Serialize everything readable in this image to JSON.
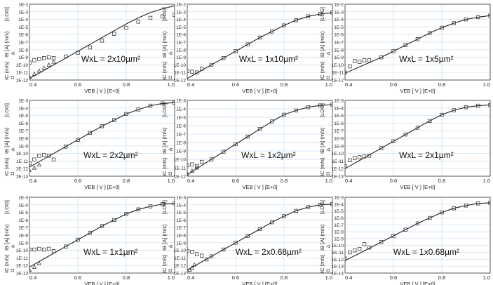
{
  "axis_labels": {
    "x": "VEB [ V ]  [E+0]",
    "y_ic": "IC (m/s)",
    "y_ib": "IB [A] (m/s)",
    "y_log": "[LOG]"
  },
  "chart_data": [
    {
      "type": "scatter",
      "annotation": "WxL = 2x10µm²",
      "xlim": [
        0.4,
        1.0
      ],
      "xticks": [
        "0.4",
        "0.6",
        "0.8",
        "1.0"
      ],
      "ylog_range": [
        -12,
        -2
      ],
      "yticks": [
        "1E-12",
        "1E-11",
        "1E-10",
        "1E-9",
        "1E-8",
        "1E-7",
        "1E-6",
        "1E-5",
        "1E-4",
        "1E-3",
        "1E-2"
      ],
      "series": [
        {
          "marker": "line",
          "x": [
            0.4,
            0.45,
            0.5,
            0.55,
            0.6,
            0.65,
            0.7,
            0.75,
            0.8,
            0.85,
            0.9,
            0.95,
            1.0
          ],
          "y": [
            -11.8,
            -10.9,
            -10.0,
            -9.1,
            -8.2,
            -7.3,
            -6.4,
            -5.5,
            -4.6,
            -3.8,
            -3.1,
            -2.6,
            -2.2
          ]
        },
        {
          "marker": "square",
          "x": [
            0.4,
            0.42,
            0.44,
            0.46,
            0.48,
            0.5,
            0.55,
            0.6,
            0.65,
            0.7,
            0.75,
            0.8,
            0.85,
            0.9,
            0.95,
            1.0
          ],
          "y": [
            -9.7,
            -9.4,
            -9.2,
            -9.1,
            -9.0,
            -9.1,
            -8.9,
            -8.4,
            -7.7,
            -6.8,
            -5.9,
            -5.1,
            -4.3,
            -3.8,
            -3.6,
            -3.4
          ]
        },
        {
          "marker": "triangle",
          "x": [
            0.4,
            0.42,
            0.44,
            0.46,
            0.48,
            0.5
          ],
          "y": [
            -11.6,
            -11.2,
            -10.8,
            -10.4,
            -10.0,
            -9.6
          ]
        }
      ]
    },
    {
      "type": "scatter",
      "annotation": "WxL = 1x10µm²",
      "xlim": [
        0.4,
        1.0
      ],
      "xticks": [
        "0.4",
        "0.6",
        "0.8",
        "1.0"
      ],
      "ylog_range": [
        -12,
        -2
      ],
      "yticks": [
        "1E-12",
        "1E-11",
        "1E-10",
        "1E-9",
        "1E-8",
        "1E-7",
        "1E-6",
        "1E-5",
        "1E-4",
        "1E-3",
        "1E-2"
      ],
      "series": [
        {
          "marker": "line",
          "x": [
            0.4,
            0.45,
            0.5,
            0.55,
            0.6,
            0.65,
            0.7,
            0.75,
            0.8,
            0.85,
            0.9,
            0.95,
            1.0
          ],
          "y": [
            -11.8,
            -10.9,
            -10.0,
            -9.1,
            -8.2,
            -7.3,
            -6.4,
            -5.6,
            -4.8,
            -4.1,
            -3.6,
            -3.3,
            -3.1
          ]
        },
        {
          "marker": "square",
          "x": [
            0.4,
            0.42,
            0.44,
            0.46,
            0.5,
            0.55,
            0.6,
            0.65,
            0.7,
            0.75,
            0.8,
            0.85,
            0.9,
            0.95,
            1.0
          ],
          "y": [
            -10.8,
            -10.9,
            -11.0,
            -10.5,
            -10.0,
            -9.1,
            -8.2,
            -7.3,
            -6.4,
            -5.6,
            -4.8,
            -4.1,
            -3.6,
            -3.3,
            -3.1
          ]
        }
      ]
    },
    {
      "type": "scatter",
      "annotation": "WxL = 1x5µm²",
      "xlim": [
        0.4,
        1.0
      ],
      "xticks": [
        "0.4",
        "0.6",
        "0.8",
        "1.0"
      ],
      "ylog_range": [
        -12,
        -2
      ],
      "yticks": [
        "1E-12",
        "1E-11",
        "1E-10",
        "1E-9",
        "1E-8",
        "1E-7",
        "1E-6",
        "1E-5",
        "1E-4",
        "1E-3",
        "1E-2"
      ],
      "series": [
        {
          "marker": "line",
          "x": [
            0.4,
            0.45,
            0.5,
            0.55,
            0.6,
            0.65,
            0.7,
            0.75,
            0.8,
            0.85,
            0.9,
            0.95,
            1.0
          ],
          "y": [
            -11.1,
            -10.4,
            -9.7,
            -9.0,
            -8.2,
            -7.4,
            -6.6,
            -5.8,
            -5.1,
            -4.5,
            -4.0,
            -3.7,
            -3.5
          ]
        },
        {
          "marker": "square",
          "x": [
            0.4,
            0.42,
            0.44,
            0.46,
            0.48,
            0.5,
            0.55,
            0.6,
            0.65,
            0.7,
            0.75,
            0.8,
            0.85,
            0.9,
            0.95,
            1.0
          ],
          "y": [
            -11.0,
            -10.2,
            -9.5,
            -9.6,
            -9.4,
            -9.4,
            -9.0,
            -8.2,
            -7.4,
            -6.6,
            -5.8,
            -5.1,
            -4.5,
            -4.0,
            -3.7,
            -3.5
          ]
        }
      ]
    },
    {
      "type": "scatter",
      "annotation": "WxL = 2x2µm²",
      "xlim": [
        0.4,
        1.0
      ],
      "xticks": [
        "0.4",
        "0.6",
        "0.8",
        "1.0"
      ],
      "ylog_range": [
        -13,
        -3
      ],
      "yticks": [
        "1E-13",
        "1E-12",
        "1E-11",
        "1E-10",
        "1E-9",
        "1E-8",
        "1E-7",
        "1E-6",
        "1E-5",
        "1E-4",
        "1E-3"
      ],
      "series": [
        {
          "marker": "line",
          "x": [
            0.4,
            0.45,
            0.5,
            0.55,
            0.6,
            0.65,
            0.7,
            0.75,
            0.8,
            0.85,
            0.9,
            0.95,
            1.0
          ],
          "y": [
            -11.8,
            -10.9,
            -10.0,
            -9.1,
            -8.2,
            -7.3,
            -6.4,
            -5.6,
            -4.8,
            -4.2,
            -3.7,
            -3.4,
            -3.3
          ]
        },
        {
          "marker": "square",
          "x": [
            0.4,
            0.42,
            0.44,
            0.46,
            0.48,
            0.5,
            0.55,
            0.6,
            0.65,
            0.7,
            0.75,
            0.8,
            0.85,
            0.9,
            0.95,
            1.0
          ],
          "y": [
            -11.3,
            -10.8,
            -10.3,
            -10.2,
            -10.3,
            -10.8,
            -9.1,
            -8.2,
            -7.3,
            -6.4,
            -5.6,
            -4.8,
            -4.2,
            -3.7,
            -3.4,
            -3.3
          ]
        },
        {
          "marker": "triangle",
          "x": [
            0.4,
            0.42,
            0.44
          ],
          "y": [
            -12.2,
            -11.9,
            -11.5
          ]
        }
      ]
    },
    {
      "type": "scatter",
      "annotation": "WxL = 1x2µm²",
      "xlim": [
        0.4,
        1.0
      ],
      "xticks": [
        "0.4",
        "0.6",
        "0.8",
        "1.0"
      ],
      "ylog_range": [
        -12,
        -3
      ],
      "yticks": [
        "1E-12",
        "1E-11",
        "1E-10",
        "1E-9",
        "1E-8",
        "1E-7",
        "1E-6",
        "1E-5",
        "1E-4",
        "1E-3"
      ],
      "series": [
        {
          "marker": "line",
          "x": [
            0.4,
            0.45,
            0.5,
            0.55,
            0.6,
            0.65,
            0.7,
            0.75,
            0.8,
            0.85,
            0.9,
            0.95,
            1.0
          ],
          "y": [
            -11.8,
            -10.9,
            -10.0,
            -9.1,
            -8.2,
            -7.3,
            -6.4,
            -5.5,
            -4.7,
            -4.2,
            -3.8,
            -3.6,
            -3.5
          ]
        },
        {
          "marker": "square",
          "x": [
            0.4,
            0.42,
            0.44,
            0.46,
            0.5,
            0.55,
            0.6,
            0.65,
            0.7,
            0.75,
            0.8,
            0.85,
            0.9,
            0.95,
            1.0
          ],
          "y": [
            -10.7,
            -10.6,
            -10.8,
            -10.3,
            -10.0,
            -9.1,
            -8.2,
            -7.3,
            -6.4,
            -5.5,
            -4.7,
            -4.2,
            -3.8,
            -3.6,
            -3.5
          ]
        },
        {
          "marker": "triangle",
          "x": [
            0.4,
            0.42,
            0.44
          ],
          "y": [
            -11.7,
            -11.4,
            -11.0
          ]
        }
      ]
    },
    {
      "type": "scatter",
      "annotation": "WxL = 2x1µm²",
      "xlim": [
        0.4,
        1.0
      ],
      "xticks": [
        "0.4",
        "0.6",
        "0.8",
        "1.0"
      ],
      "ylog_range": [
        -13,
        -3
      ],
      "yticks": [
        "1E-13",
        "1E-12",
        "1E-11",
        "1E-10",
        "1E-9",
        "1E-8",
        "1E-7",
        "1E-6",
        "1E-5",
        "1E-4",
        "1E-3"
      ],
      "series": [
        {
          "marker": "line",
          "x": [
            0.4,
            0.45,
            0.5,
            0.55,
            0.6,
            0.65,
            0.7,
            0.75,
            0.8,
            0.85,
            0.9,
            0.95,
            1.0
          ],
          "y": [
            -12.0,
            -11.1,
            -10.2,
            -9.3,
            -8.4,
            -7.5,
            -6.6,
            -5.7,
            -4.9,
            -4.3,
            -3.9,
            -3.7,
            -3.6
          ]
        },
        {
          "marker": "square",
          "x": [
            0.4,
            0.42,
            0.44,
            0.46,
            0.48,
            0.5,
            0.55,
            0.6,
            0.65,
            0.7,
            0.75,
            0.8,
            0.85,
            0.9,
            0.95,
            1.0
          ],
          "y": [
            -11.7,
            -10.9,
            -10.6,
            -10.5,
            -10.4,
            -10.3,
            -9.3,
            -8.4,
            -7.5,
            -6.6,
            -5.7,
            -4.9,
            -4.3,
            -3.9,
            -3.7,
            -3.6
          ]
        }
      ]
    },
    {
      "type": "scatter",
      "annotation": "WxL = 1x1µm²",
      "xlim": [
        0.4,
        1.0
      ],
      "xticks": [
        "0.4",
        "0.6",
        "0.8",
        "1.0"
      ],
      "ylog_range": [
        -13,
        -3
      ],
      "yticks": [
        "1E-13",
        "1E-12",
        "1E-11",
        "1E-10",
        "1E-9",
        "1E-8",
        "1E-7",
        "1E-6",
        "1E-5",
        "1E-4",
        "1E-3"
      ],
      "series": [
        {
          "marker": "line",
          "x": [
            0.4,
            0.45,
            0.5,
            0.55,
            0.6,
            0.65,
            0.7,
            0.75,
            0.8,
            0.85,
            0.9,
            0.95,
            1.0
          ],
          "y": [
            -12.2,
            -11.3,
            -10.4,
            -9.5,
            -8.6,
            -7.7,
            -6.8,
            -6.0,
            -5.2,
            -4.6,
            -4.2,
            -3.9,
            -3.8
          ]
        },
        {
          "marker": "square",
          "x": [
            0.4,
            0.42,
            0.44,
            0.46,
            0.48,
            0.5,
            0.55,
            0.6,
            0.65,
            0.7,
            0.75,
            0.8,
            0.85,
            0.9,
            0.95,
            1.0
          ],
          "y": [
            -9.9,
            -9.9,
            -9.8,
            -9.9,
            -9.8,
            -10.1,
            -9.5,
            -8.6,
            -7.7,
            -6.8,
            -6.0,
            -5.2,
            -4.6,
            -4.2,
            -3.9,
            -3.8
          ]
        },
        {
          "marker": "triangle",
          "x": [
            0.4,
            0.42,
            0.44
          ],
          "y": [
            -12.6,
            -12.2,
            -11.7
          ]
        }
      ]
    },
    {
      "type": "scatter",
      "annotation": "WxL = 2x0.68µm²",
      "xlim": [
        0.4,
        1.0
      ],
      "xticks": [
        "0.4",
        "0.6",
        "0.8",
        "1.0"
      ],
      "ylog_range": [
        -13,
        -3
      ],
      "yticks": [
        "1E-13",
        "1E-12",
        "1E-11",
        "1E-10",
        "1E-9",
        "1E-8",
        "1E-7",
        "1E-6",
        "1E-5",
        "1E-4",
        "1E-3"
      ],
      "series": [
        {
          "marker": "line",
          "x": [
            0.4,
            0.45,
            0.5,
            0.55,
            0.6,
            0.65,
            0.7,
            0.75,
            0.8,
            0.85,
            0.9,
            0.95,
            1.0
          ],
          "y": [
            -12.6,
            -11.7,
            -10.8,
            -9.9,
            -9.0,
            -8.1,
            -7.2,
            -6.3,
            -5.5,
            -4.8,
            -4.3,
            -4.0,
            -3.9
          ]
        },
        {
          "marker": "square",
          "x": [
            0.4,
            0.42,
            0.44,
            0.46,
            0.48,
            0.5,
            0.55,
            0.6,
            0.65,
            0.7,
            0.75,
            0.8,
            0.85,
            0.9,
            0.95,
            1.0
          ],
          "y": [
            -10.1,
            -10.2,
            -10.5,
            -10.7,
            -11.2,
            -10.8,
            -9.9,
            -9.0,
            -8.1,
            -7.2,
            -6.3,
            -5.5,
            -4.8,
            -4.3,
            -4.0,
            -3.9
          ]
        },
        {
          "marker": "triangle",
          "x": [
            0.41,
            0.42,
            0.43
          ],
          "y": [
            -12.6,
            -12.3,
            -11.9
          ]
        }
      ]
    },
    {
      "type": "scatter",
      "annotation": "WxL = 1x0.68µm²",
      "xlim": [
        0.4,
        1.0
      ],
      "xticks": [
        "0.4",
        "0.6",
        "0.8",
        "1.0"
      ],
      "ylog_range": [
        -14,
        -3
      ],
      "yticks": [
        "1E-14",
        "1E-13",
        "1E-12",
        "1E-11",
        "1E-10",
        "1E-9",
        "1E-8",
        "1E-7",
        "1E-6",
        "1E-5",
        "1E-4",
        "1E-3"
      ],
      "series": [
        {
          "marker": "line",
          "x": [
            0.4,
            0.45,
            0.5,
            0.55,
            0.6,
            0.65,
            0.7,
            0.75,
            0.8,
            0.85,
            0.9,
            0.95,
            1.0
          ],
          "y": [
            -12.2,
            -11.3,
            -10.4,
            -9.5,
            -8.6,
            -7.7,
            -6.8,
            -6.0,
            -5.2,
            -4.6,
            -4.2,
            -3.9,
            -3.8
          ]
        },
        {
          "marker": "square",
          "x": [
            0.4,
            0.42,
            0.44,
            0.46,
            0.48,
            0.5,
            0.55,
            0.6,
            0.65,
            0.7,
            0.75,
            0.8,
            0.85,
            0.9,
            0.95,
            1.0
          ],
          "y": [
            -11.9,
            -11.0,
            -10.7,
            -10.5,
            -9.8,
            -10.3,
            -9.5,
            -8.6,
            -7.7,
            -6.8,
            -6.0,
            -5.2,
            -4.6,
            -4.2,
            -3.9,
            -3.8
          ]
        }
      ]
    }
  ]
}
